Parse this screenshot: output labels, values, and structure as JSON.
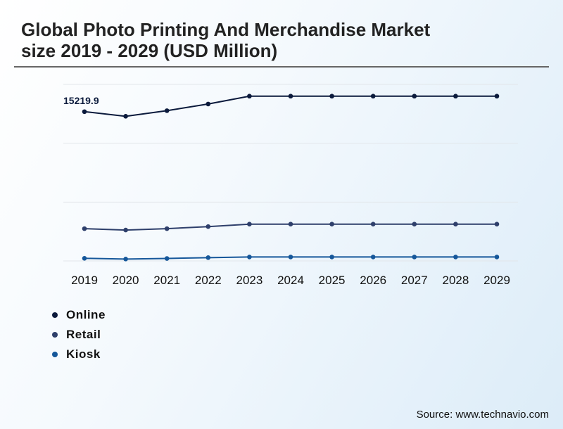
{
  "title": {
    "line1": "Global Photo Printing And Merchandise Market",
    "line2": "size 2019 - 2029 (USD Million)"
  },
  "source": "Source: www.technavio.com",
  "chart_data": {
    "type": "line",
    "title": "Global Photo Printing And Merchandise Market size 2019 - 2029 (USD Million)",
    "xlabel": "",
    "ylabel": "",
    "grid": true,
    "legend_position": "bottom-left",
    "categories": [
      "2019",
      "2020",
      "2021",
      "2022",
      "2023",
      "2024",
      "2025",
      "2026",
      "2027",
      "2028",
      "2029"
    ],
    "ylim": [
      0,
      18000
    ],
    "series": [
      {
        "name": "Online",
        "color": "#0b1a3c",
        "values": [
          15219.9,
          14750,
          15320,
          16000,
          16800,
          16800,
          16800,
          16800,
          16800,
          16800,
          16800
        ]
      },
      {
        "name": "Retail",
        "color": "#2e3f6b",
        "values": [
          3290,
          3150,
          3290,
          3500,
          3750,
          3750,
          3750,
          3750,
          3750,
          3750,
          3750
        ]
      },
      {
        "name": "Kiosk",
        "color": "#15579a",
        "values": [
          265,
          190,
          250,
          335,
          400,
          400,
          400,
          400,
          400,
          400,
          400
        ]
      }
    ],
    "annotations": [
      {
        "series": "Online",
        "index": 0,
        "text": "15219.9"
      }
    ]
  }
}
